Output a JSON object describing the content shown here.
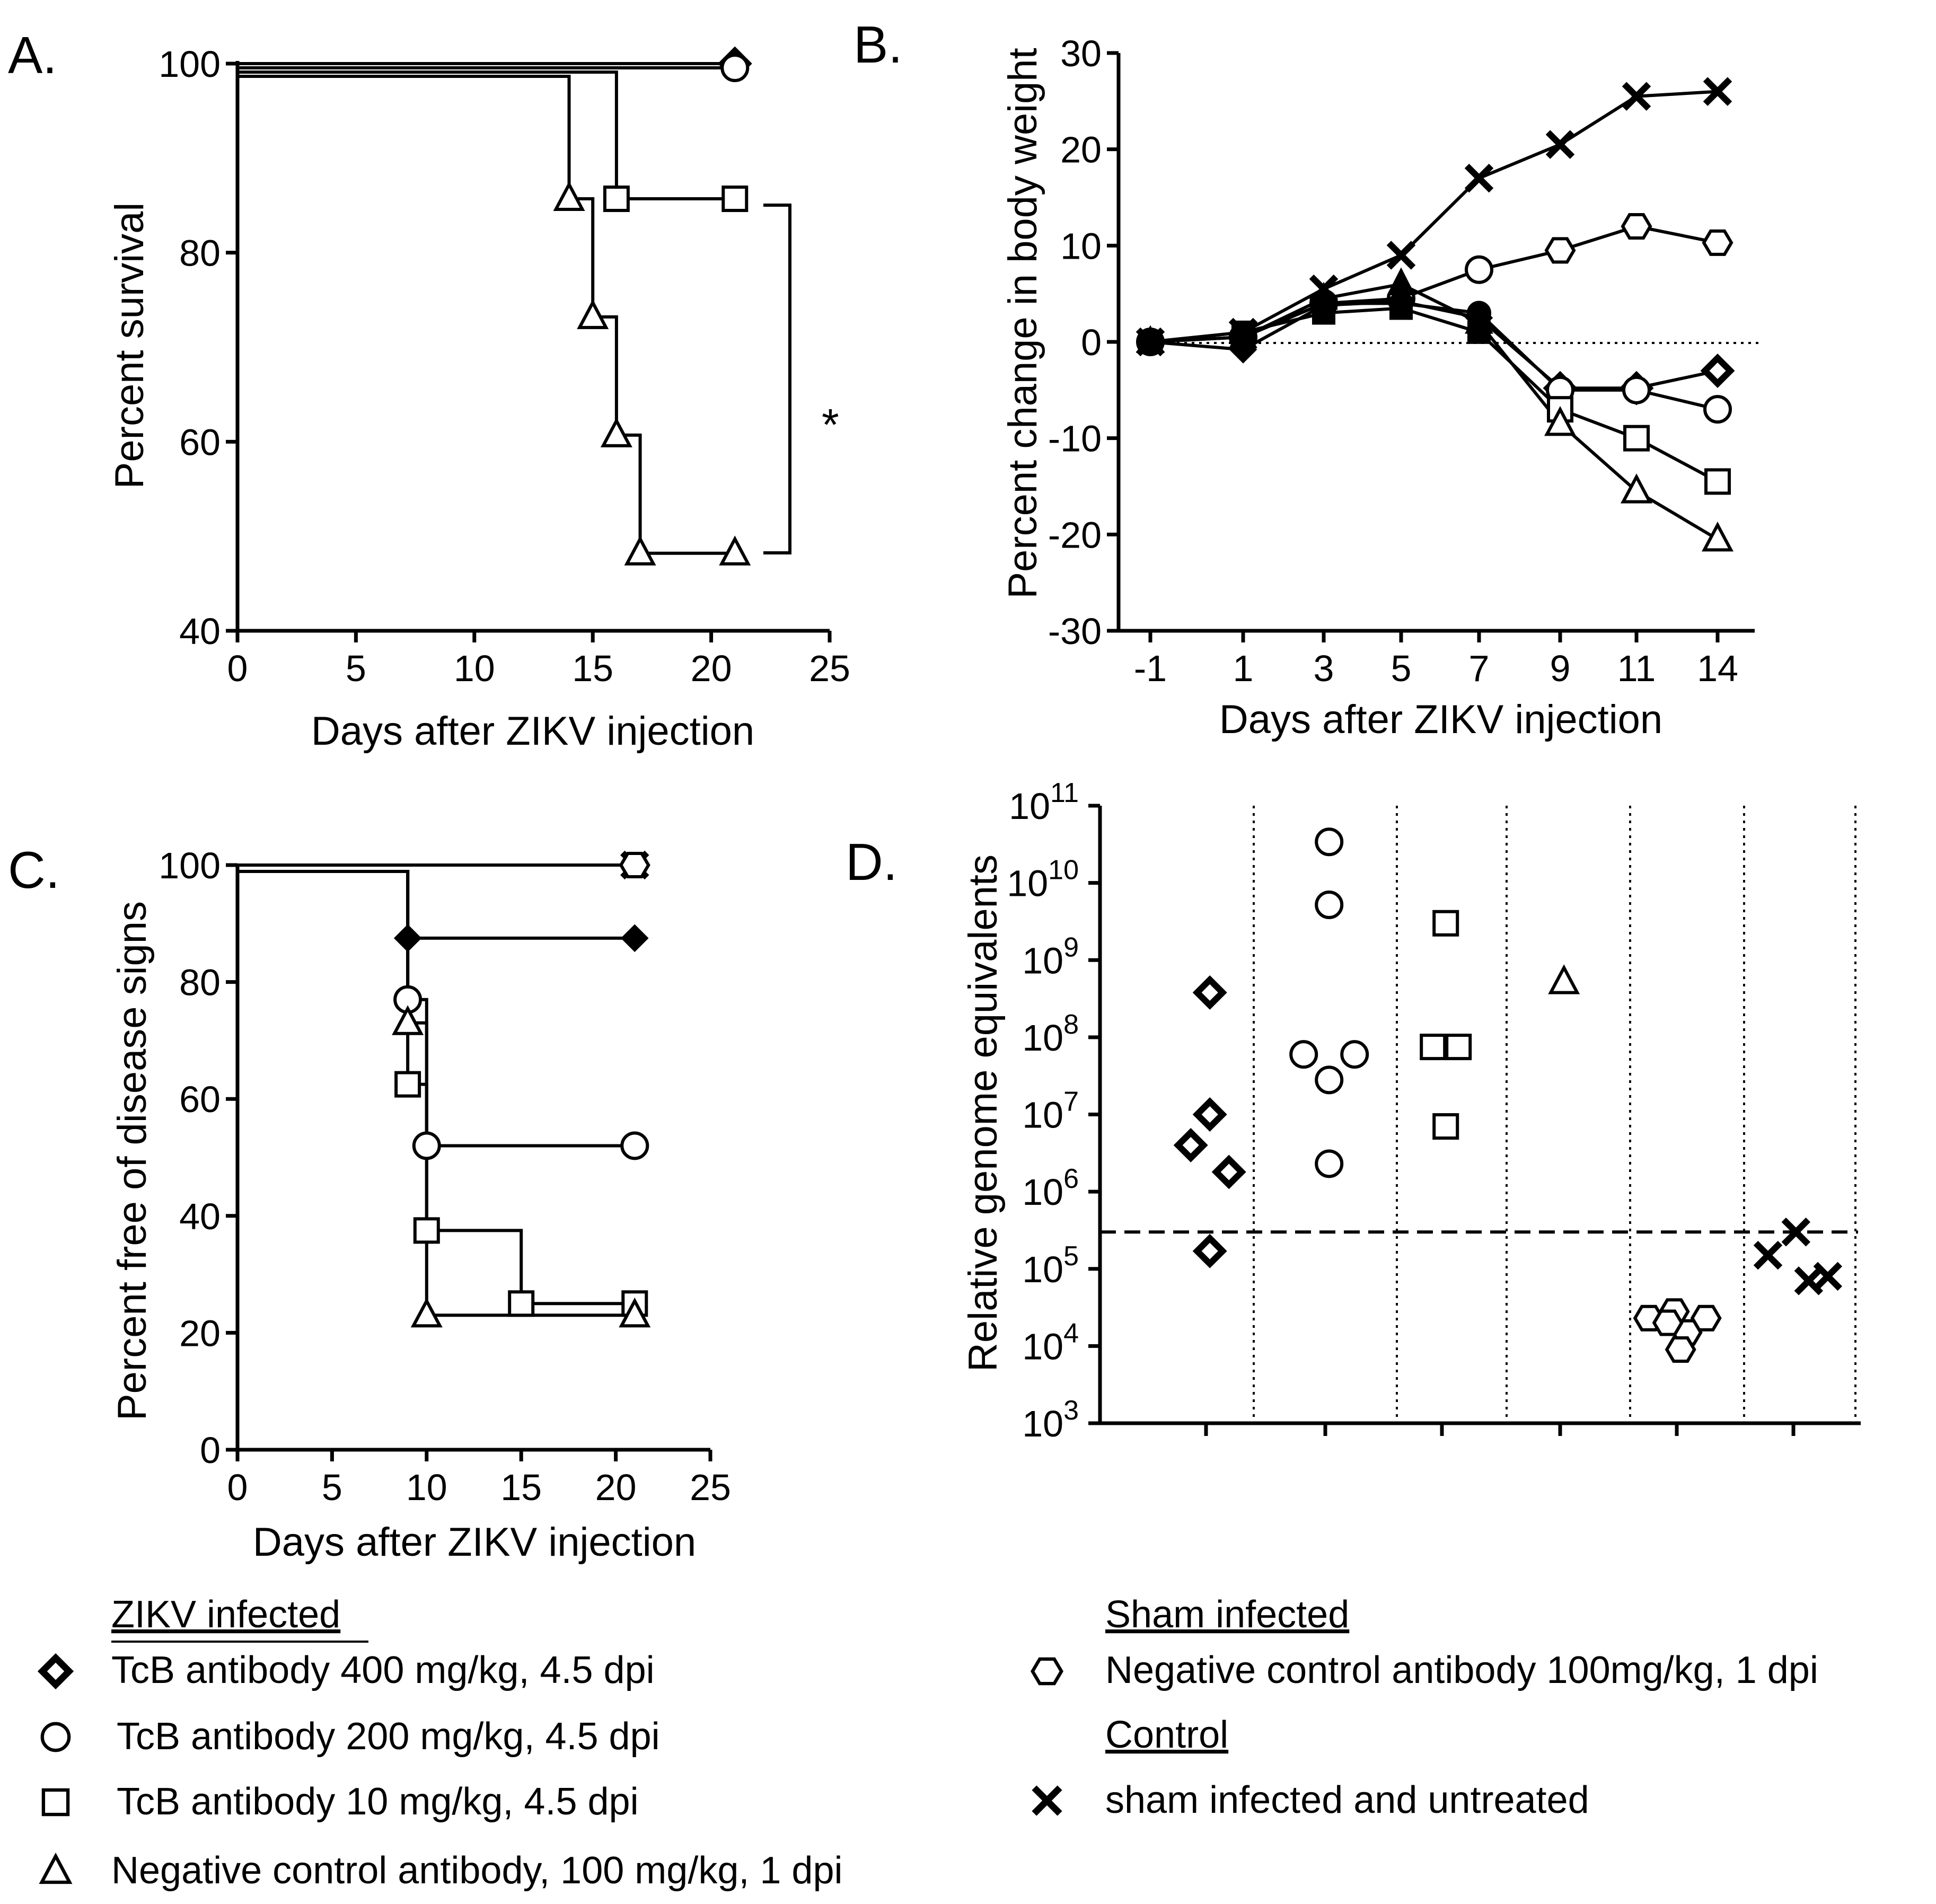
{
  "colors": {
    "ink": "#000000",
    "background": "#ffffff"
  },
  "legend": {
    "zikv_header": "ZIKV infected",
    "sham_header": "Sham infected",
    "control_header": "Control",
    "items": [
      {
        "key": "diamond",
        "label": "TcB antibody 400 mg/kg, 4.5 dpi"
      },
      {
        "key": "circle",
        "label": "TcB antibody 200 mg/kg, 4.5 dpi"
      },
      {
        "key": "square",
        "label": "TcB antibody 10 mg/kg, 4.5 dpi"
      },
      {
        "key": "triangle",
        "label": "Negative control antibody, 100 mg/kg, 1 dpi"
      },
      {
        "key": "hexagon",
        "label": "Negative control  antibody 100mg/kg, 1 dpi"
      },
      {
        "key": "cross",
        "label": "sham infected and untreated"
      }
    ]
  },
  "chart_data": [
    {
      "panel": "A.",
      "type": "line",
      "style": "survival-step",
      "xlabel": "Days after ZIKV injection",
      "ylabel": "Percent survival",
      "xlim": [
        0,
        25
      ],
      "ylim": [
        40,
        100
      ],
      "xticks": [
        0,
        5,
        10,
        15,
        20,
        25
      ],
      "yticks": [
        40,
        60,
        80,
        100
      ],
      "annotation": "*",
      "series": [
        {
          "name": "TcB antibody 400 mg/kg, 4.5 dpi",
          "marker": "diamond",
          "x": [
            0,
            21
          ],
          "y": [
            100,
            100
          ]
        },
        {
          "name": "TcB antibody 200 mg/kg, 4.5 dpi",
          "marker": "circle",
          "x": [
            0,
            21
          ],
          "y": [
            100,
            100
          ]
        },
        {
          "name": "TcB antibody 10 mg/kg, 4.5 dpi",
          "marker": "square",
          "x": [
            0,
            16,
            21
          ],
          "y": [
            100,
            85.7,
            85.7
          ]
        },
        {
          "name": "Negative control antibody, 100 mg/kg, 1 dpi",
          "marker": "triangle",
          "x": [
            0,
            14,
            15,
            16,
            17,
            21
          ],
          "y": [
            100,
            85.7,
            73.2,
            60.7,
            48.2,
            48.2
          ]
        }
      ]
    },
    {
      "panel": "B.",
      "type": "line",
      "xlabel": "Days after ZIKV injection",
      "ylabel": "Percent change in body weight",
      "categories": [
        "-1",
        "1",
        "3",
        "5",
        "7",
        "9",
        "11",
        "14"
      ],
      "ylim": [
        -30,
        30
      ],
      "yticks": [
        -30,
        -20,
        -10,
        0,
        10,
        20,
        30
      ],
      "reference_line": 0,
      "series": [
        {
          "name": "sham infected and untreated",
          "marker": "cross",
          "values": [
            0,
            1,
            5.5,
            9,
            17,
            20.5,
            25.5,
            26
          ]
        },
        {
          "name": "Negative control  antibody 100mg/kg, 1 dpi",
          "marker": "hexagon",
          "values": [
            0,
            0.5,
            4,
            4.5,
            7.5,
            9.5,
            12,
            10.3
          ]
        },
        {
          "name": "TcB antibody 400 mg/kg, 4.5 dpi",
          "marker": "diamond",
          "values": [
            0,
            -0.8,
            3.8,
            4.2,
            2.5,
            -4.8,
            -4.8,
            -3
          ]
        },
        {
          "name": "TcB antibody 200 mg/kg, 4.5 dpi",
          "marker": "circle",
          "values": [
            0,
            0.5,
            4,
            4,
            3,
            -5,
            -5,
            -7
          ]
        },
        {
          "name": "TcB antibody 10 mg/kg, 4.5 dpi",
          "marker": "square",
          "values": [
            0,
            1,
            3,
            3.5,
            1,
            -7,
            -10,
            -14.5
          ]
        },
        {
          "name": "Negative control antibody, 100 mg/kg, 1 dpi",
          "marker": "triangle",
          "values": [
            0,
            0.5,
            4.5,
            6,
            2,
            -8.5,
            -15.5,
            -20.5
          ]
        }
      ]
    },
    {
      "panel": "C.",
      "type": "line",
      "style": "survival-step",
      "xlabel": "Days after ZIKV injection",
      "ylabel": "Percent free of disease signs",
      "xlim": [
        0,
        25
      ],
      "ylim": [
        0,
        100
      ],
      "xticks": [
        0,
        5,
        10,
        15,
        20,
        25
      ],
      "yticks": [
        0,
        20,
        40,
        60,
        80,
        100
      ],
      "series": [
        {
          "name": "sham infected and untreated",
          "marker": "cross",
          "x": [
            0,
            21
          ],
          "y": [
            100,
            100
          ]
        },
        {
          "name": "Negative control  antibody 100mg/kg, 1 dpi",
          "marker": "hexagon",
          "x": [
            0,
            21
          ],
          "y": [
            100,
            100
          ]
        },
        {
          "name": "TcB antibody 400 mg/kg, 4.5 dpi",
          "marker": "diamond",
          "x": [
            0,
            9,
            21
          ],
          "y": [
            100,
            87.5,
            87.5
          ]
        },
        {
          "name": "TcB antibody 200 mg/kg, 4.5 dpi",
          "marker": "circle",
          "x": [
            0,
            9,
            10,
            21
          ],
          "y": [
            100,
            77,
            52,
            52
          ]
        },
        {
          "name": "TcB antibody 10 mg/kg, 4.5 dpi",
          "marker": "square",
          "x": [
            0,
            9,
            10,
            15,
            21
          ],
          "y": [
            100,
            62.5,
            37.5,
            25,
            25
          ]
        },
        {
          "name": "Negative control antibody, 100 mg/kg, 1 dpi",
          "marker": "triangle",
          "x": [
            0,
            9,
            10,
            21
          ],
          "y": [
            100,
            73,
            23,
            23
          ]
        }
      ]
    },
    {
      "panel": "D.",
      "type": "scatter",
      "ylabel": "Relative genome equivalents",
      "yscale": "log",
      "ylim_exponent": [
        3,
        11
      ],
      "ytick_base": "10",
      "ytick_exponents": [
        "3",
        "4",
        "5",
        "6",
        "7",
        "8",
        "9",
        "10",
        "11"
      ],
      "threshold": 300000,
      "groups": [
        {
          "name": "TcB antibody 400 mg/kg, 4.5 dpi",
          "marker": "diamond",
          "points": [
            [
              -0.12,
              4000000
            ],
            [
              0.03,
              10000000
            ],
            [
              0.18,
              1800000
            ],
            [
              0.03,
              380000000
            ],
            [
              0.03,
              170000
            ]
          ]
        },
        {
          "name": "TcB antibody 200 mg/kg, 4.5 dpi",
          "marker": "circle",
          "points": [
            [
              0.03,
              34000000000
            ],
            [
              0.03,
              5200000000
            ],
            [
              -0.17,
              60000000
            ],
            [
              0.23,
              60000000
            ],
            [
              0.03,
              28000000
            ],
            [
              0.03,
              2300000
            ]
          ]
        },
        {
          "name": "TcB antibody 10 mg/kg, 4.5 dpi",
          "marker": "square",
          "points": [
            [
              0.03,
              3000000000
            ],
            [
              -0.07,
              75000000
            ],
            [
              0.13,
              75000000
            ],
            [
              0.03,
              7000000
            ]
          ]
        },
        {
          "name": "Negative control antibody, 100 mg/kg, 1 dpi",
          "marker": "triangle",
          "points": [
            [
              0.03,
              520000000
            ]
          ]
        },
        {
          "name": "Negative control  antibody 100mg/kg, 1 dpi",
          "marker": "hexagon",
          "points": [
            [
              -0.22,
              23000
            ],
            [
              -0.02,
              28000
            ],
            [
              0.08,
              15000
            ],
            [
              0.23,
              23000
            ],
            [
              -0.07,
              20000
            ],
            [
              0.03,
              9000
            ]
          ]
        },
        {
          "name": "sham infected and untreated",
          "marker": "cross",
          "points": [
            [
              -0.2,
              150000
            ],
            [
              0.02,
              300000
            ],
            [
              0.12,
              70000
            ],
            [
              0.27,
              80000
            ]
          ]
        }
      ]
    }
  ]
}
